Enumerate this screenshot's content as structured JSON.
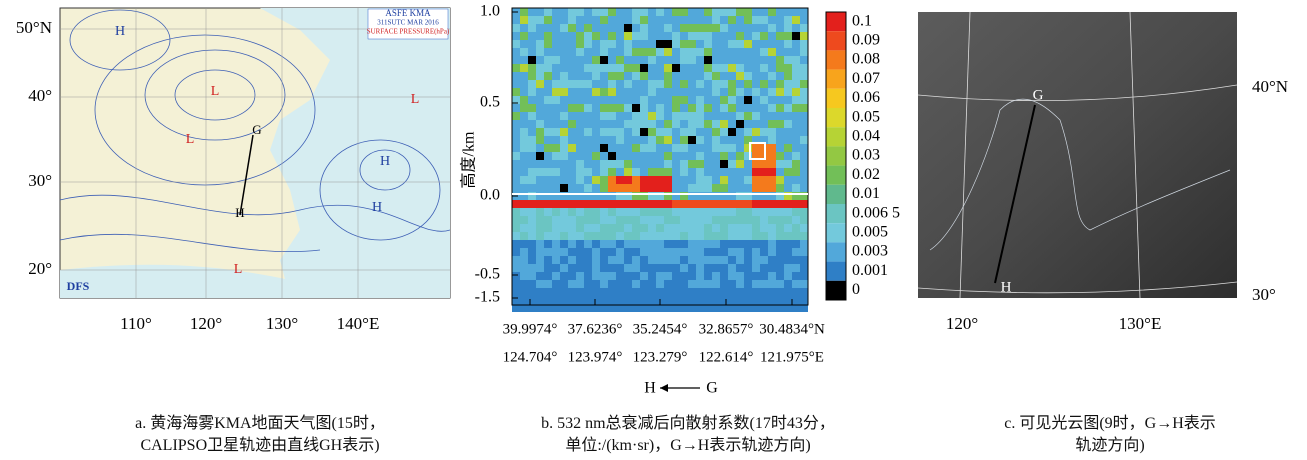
{
  "panel_a": {
    "map_header": [
      "ASFE  KMA",
      "311SUTC MAR 2016",
      "SURFACE PRESSURE(hPa)"
    ],
    "logo": "DFS",
    "centers": [
      "H",
      "L",
      "L",
      "L",
      "H",
      "H",
      "L"
    ],
    "lat_labels": [
      "50°N",
      "40°",
      "30°",
      "20°"
    ],
    "lon_labels": [
      "110°",
      "120°",
      "130°",
      "140°E"
    ],
    "track_labels": [
      "G",
      "H"
    ],
    "caption": [
      "a.  黄海海雾KMA地面天气图(15时，",
      "CALIPSO卫星轨迹由直线GH表示)"
    ]
  },
  "panel_b": {
    "y_label": "高度/km",
    "y_ticks": [
      "1.0",
      "0.5",
      "0.0",
      "-0.5",
      "-1.5"
    ],
    "lat_ticks": [
      "39.9974°",
      "37.6236°",
      "35.2454°",
      "32.8657°",
      "30.4834°N"
    ],
    "lon_ticks": [
      "124.704°",
      "123.974°",
      "123.279°",
      "122.614°",
      "121.975°E"
    ],
    "colorbar": [
      {
        "label": "0.1",
        "color": "#e3201c"
      },
      {
        "label": "0.09",
        "color": "#ee4a1e"
      },
      {
        "label": "0.08",
        "color": "#f47a1c"
      },
      {
        "label": "0.07",
        "color": "#f8a41c"
      },
      {
        "label": "0.06",
        "color": "#f6c81f"
      },
      {
        "label": "0.05",
        "color": "#dcd82b"
      },
      {
        "label": "0.04",
        "color": "#b6d335"
      },
      {
        "label": "0.03",
        "color": "#93c843"
      },
      {
        "label": "0.02",
        "color": "#72bf58"
      },
      {
        "label": "0.01",
        "color": "#60b98d"
      },
      {
        "label": "0.006 5",
        "color": "#6bc5c2"
      },
      {
        "label": "0.005",
        "color": "#73c9dc"
      },
      {
        "label": "0.003",
        "color": "#52a8da"
      },
      {
        "label": "0.001",
        "color": "#2f7fc6"
      },
      {
        "label": "0",
        "color": "#000000"
      }
    ],
    "direction": {
      "left": "H",
      "right": "G"
    },
    "caption": [
      "b.  532 nm总衰减后向散射系数(17时43分，",
      "单位:/(km·sr)，G→H表示轨迹方向)"
    ]
  },
  "panel_c": {
    "track_labels": [
      "G",
      "H"
    ],
    "lat_labels": [
      "40°N",
      "30°"
    ],
    "lon_labels": [
      "120°",
      "130°E"
    ],
    "caption": [
      "c.  可见光云图(9时，G→H表示",
      "轨迹方向)"
    ]
  }
}
